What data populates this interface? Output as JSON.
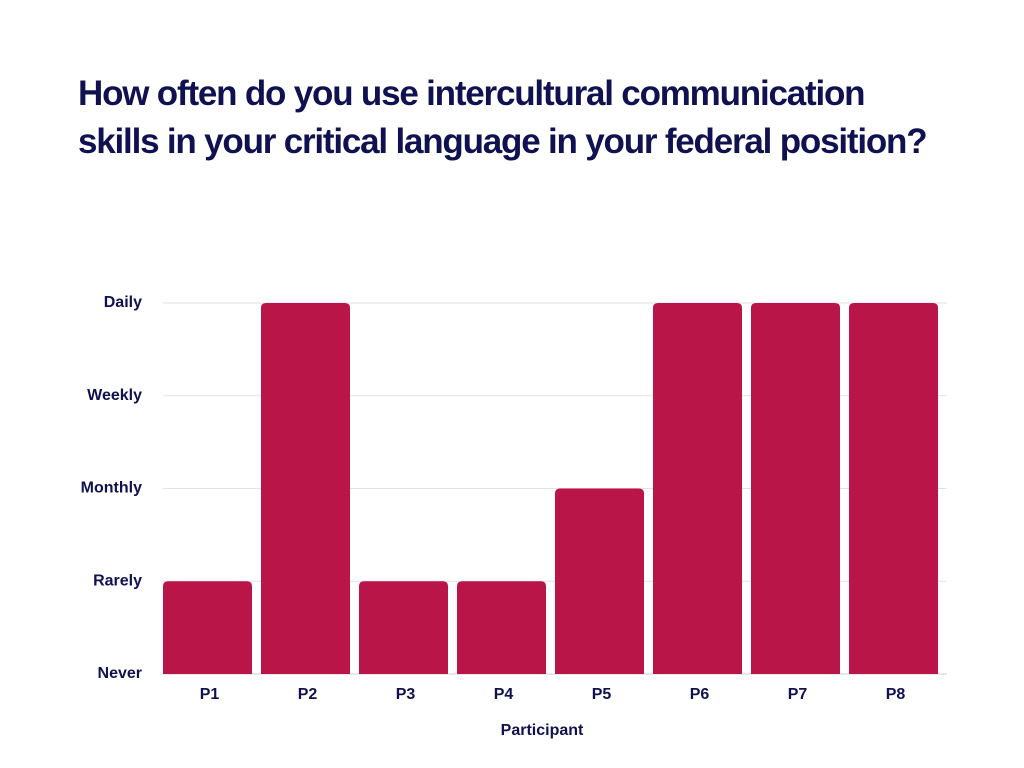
{
  "title": {
    "line1": "How often do you use intercultural communication",
    "line2": "skills in your critical language in your federal position?"
  },
  "chart_data": {
    "type": "bar",
    "title": "How often do you use intercultural communication skills in your critical language in your federal position?",
    "xlabel": "Participant",
    "ylabel": "",
    "categories": [
      "P1",
      "P2",
      "P3",
      "P4",
      "P5",
      "P6",
      "P7",
      "P8"
    ],
    "y_levels": [
      "Never",
      "Rarely",
      "Monthly",
      "Weekly",
      "Daily"
    ],
    "values": [
      1,
      4,
      1,
      1,
      2,
      4,
      4,
      4
    ],
    "value_labels": [
      "Rarely",
      "Daily",
      "Rarely",
      "Rarely",
      "Monthly",
      "Daily",
      "Daily",
      "Daily"
    ],
    "ylim": [
      0,
      4
    ],
    "grid": true,
    "legend": "none",
    "colors": {
      "bar": "#b91549",
      "title": "#0f1150",
      "grid": "#e2e2e2"
    }
  }
}
